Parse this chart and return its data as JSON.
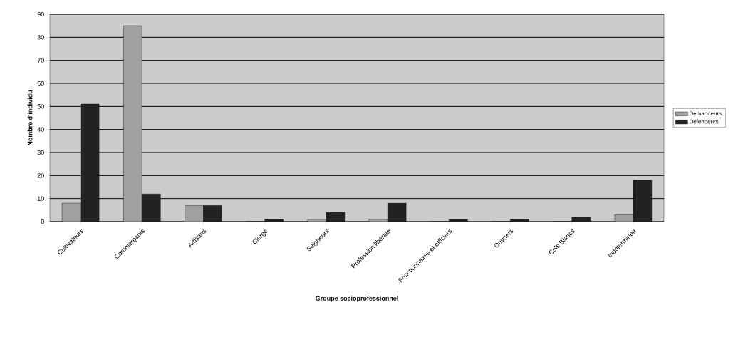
{
  "chart_data": {
    "type": "bar",
    "xlabel": "Groupe socioprofessionnel",
    "ylabel": "Nombre d'individu",
    "categories": [
      "Cultivateurs",
      "Commerçants",
      "Artisans",
      "Clergé",
      "Seigneurs",
      "Profession libérale",
      "Fonctionnaires et officiers",
      "Ouvriers",
      "Cols Blancs",
      "Indéterminée"
    ],
    "series": [
      {
        "name": "Demandeurs",
        "color": "#a0a0a0",
        "values": [
          8,
          85,
          7,
          0,
          1,
          1,
          0,
          0,
          0,
          3
        ]
      },
      {
        "name": "Défendeurs",
        "color": "#222222",
        "values": [
          51,
          12,
          7,
          1,
          4,
          8,
          1,
          1,
          2,
          18
        ]
      }
    ],
    "ylim": [
      0,
      90
    ],
    "yticks": [
      0,
      10,
      20,
      30,
      40,
      50,
      60,
      70,
      80,
      90
    ],
    "grid": "y",
    "legend": "right"
  }
}
